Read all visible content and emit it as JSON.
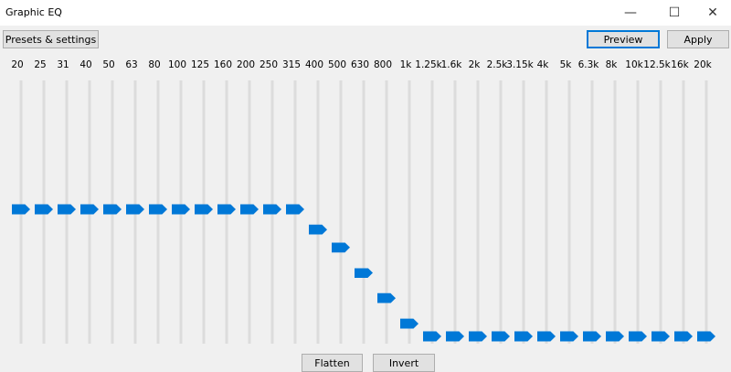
{
  "window": {
    "title": "Graphic EQ",
    "controls": {
      "minimize": "—",
      "maximize": "☐",
      "close": "✕"
    }
  },
  "toolbar": {
    "presets_label": "Presets & settings",
    "preview_label": "Preview",
    "apply_label": "Apply"
  },
  "footer": {
    "flatten_label": "Flatten",
    "invert_label": "Invert"
  },
  "accent_color": "#0078d7",
  "bands": [
    {
      "label": "20",
      "level": 0.5
    },
    {
      "label": "25",
      "level": 0.5
    },
    {
      "label": "31",
      "level": 0.5
    },
    {
      "label": "40",
      "level": 0.5
    },
    {
      "label": "50",
      "level": 0.5
    },
    {
      "label": "63",
      "level": 0.5
    },
    {
      "label": "80",
      "level": 0.5
    },
    {
      "label": "100",
      "level": 0.5
    },
    {
      "label": "125",
      "level": 0.5
    },
    {
      "label": "160",
      "level": 0.5
    },
    {
      "label": "200",
      "level": 0.5
    },
    {
      "label": "250",
      "level": 0.5
    },
    {
      "label": "315",
      "level": 0.5
    },
    {
      "label": "400",
      "level": 0.42
    },
    {
      "label": "500",
      "level": 0.35
    },
    {
      "label": "630",
      "level": 0.25
    },
    {
      "label": "800",
      "level": 0.15
    },
    {
      "label": "1k",
      "level": 0.05
    },
    {
      "label": "1.25k",
      "level": 0
    },
    {
      "label": "1.6k",
      "level": 0
    },
    {
      "label": "2k",
      "level": 0
    },
    {
      "label": "2.5k",
      "level": 0
    },
    {
      "label": "3.15k",
      "level": 0
    },
    {
      "label": "4k",
      "level": 0
    },
    {
      "label": "5k",
      "level": 0
    },
    {
      "label": "6.3k",
      "level": 0
    },
    {
      "label": "8k",
      "level": 0
    },
    {
      "label": "10k",
      "level": 0
    },
    {
      "label": "12.5k",
      "level": 0
    },
    {
      "label": "16k",
      "level": 0
    },
    {
      "label": "20k",
      "level": 0
    }
  ]
}
